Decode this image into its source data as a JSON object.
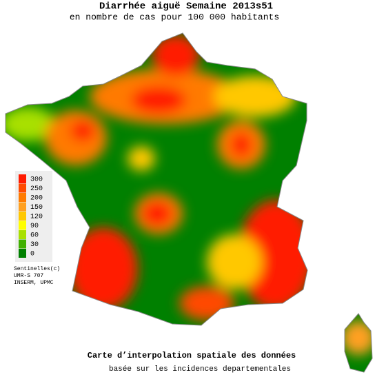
{
  "header": {
    "title": "Diarrhée aiguë Semaine 2013s51",
    "subtitle": "en nombre de cas pour 100 000 habitants"
  },
  "legend": {
    "items": [
      {
        "value": 300,
        "color": "#ff1a00"
      },
      {
        "value": 250,
        "color": "#ff4a00"
      },
      {
        "value": 200,
        "color": "#ff7a00"
      },
      {
        "value": 150,
        "color": "#ffa020"
      },
      {
        "value": 120,
        "color": "#ffc800"
      },
      {
        "value": 90,
        "color": "#ffff00"
      },
      {
        "value": 60,
        "color": "#a8e000"
      },
      {
        "value": 30,
        "color": "#40b000"
      },
      {
        "value": 0,
        "color": "#008000"
      }
    ]
  },
  "credits": [
    "Sentinelles(c)",
    "UMR-S 707",
    "INSERM, UPMC"
  ],
  "footer": {
    "title": "Carte d’interpolation spatiale des données",
    "subtitle": "basée sur les incidences departementales"
  }
}
